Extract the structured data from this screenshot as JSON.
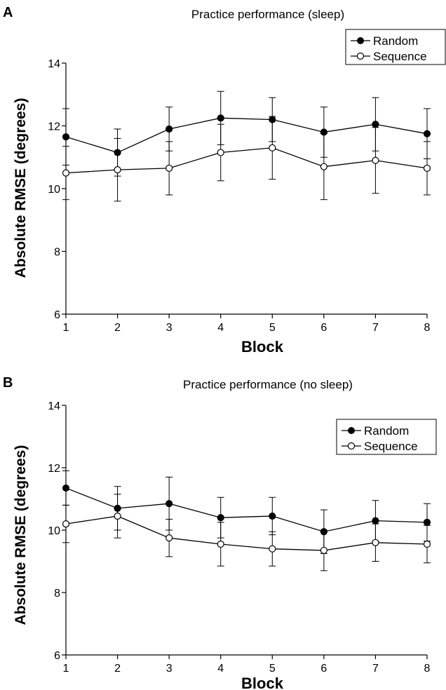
{
  "chart_data": [
    {
      "type": "line",
      "panel_label": "A",
      "title": "Practice performance (sleep)",
      "xlabel": "Block",
      "ylabel": "Absolute RMSE (degrees)",
      "x": [
        1,
        2,
        3,
        4,
        5,
        6,
        7,
        8
      ],
      "xticks": [
        "1",
        "2",
        "3",
        "4",
        "5",
        "6",
        "7",
        "8"
      ],
      "yticks": [
        "6",
        "8",
        "10",
        "12",
        "14"
      ],
      "ylim": [
        6,
        14
      ],
      "legend_position": "top-right",
      "series": [
        {
          "name": "Random",
          "marker": "filled-circle",
          "values": [
            11.65,
            11.15,
            11.9,
            12.25,
            12.2,
            11.8,
            12.05,
            11.75
          ],
          "error": [
            0.9,
            0.75,
            0.7,
            0.85,
            0.7,
            0.8,
            0.85,
            0.8
          ]
        },
        {
          "name": "Sequence",
          "marker": "open-circle",
          "values": [
            10.5,
            10.6,
            10.65,
            11.15,
            11.3,
            10.7,
            10.9,
            10.65
          ],
          "error": [
            0.85,
            1.0,
            0.85,
            0.9,
            1.0,
            1.05,
            1.05,
            0.85
          ]
        }
      ]
    },
    {
      "type": "line",
      "panel_label": "B",
      "title": "Practice performance (no sleep)",
      "xlabel": "Block",
      "ylabel": "Absolute RMSE (degrees)",
      "x": [
        1,
        2,
        3,
        4,
        5,
        6,
        7,
        8
      ],
      "xticks": [
        "1",
        "2",
        "3",
        "4",
        "5",
        "6",
        "7",
        "8"
      ],
      "yticks": [
        "6",
        "8",
        "10",
        "12",
        "14"
      ],
      "ylim": [
        6,
        14
      ],
      "legend_position": "top-right",
      "series": [
        {
          "name": "Random",
          "marker": "filled-circle",
          "values": [
            11.35,
            10.7,
            10.85,
            10.4,
            10.45,
            9.95,
            10.3,
            10.25
          ],
          "error": [
            0.55,
            0.7,
            0.85,
            0.65,
            0.6,
            0.7,
            0.65,
            0.6
          ]
        },
        {
          "name": "Sequence",
          "marker": "open-circle",
          "values": [
            10.2,
            10.45,
            9.75,
            9.55,
            9.4,
            9.35,
            9.6,
            9.55
          ],
          "error": [
            0.6,
            0.7,
            0.6,
            0.7,
            0.55,
            0.65,
            0.6,
            0.6
          ]
        }
      ]
    }
  ]
}
